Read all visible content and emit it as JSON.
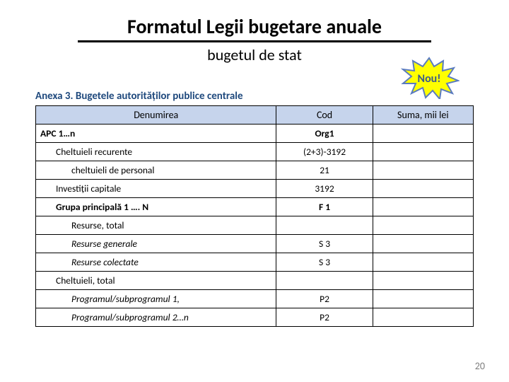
{
  "header": {
    "title": "Formatul Legii bugetare anuale",
    "subtitle": "bugetul de stat"
  },
  "burst": {
    "text": "Nou!",
    "fill": "#ffff00",
    "stroke": "#5a7bbf",
    "textColor": "#3b5a8a"
  },
  "annex": {
    "title": "Anexa 3. Bugetele  autorităților publice  centrale"
  },
  "table": {
    "headers": {
      "col1": "Denumirea",
      "col2": "Cod",
      "col3": "Suma, mii lei"
    },
    "rows": [
      {
        "name": "APC 1…n",
        "cod": "Org1",
        "suma": "",
        "bold": true,
        "indent": 0
      },
      {
        "name": "Cheltuieli recurente",
        "cod": "(2+3)-3192",
        "suma": "",
        "bold": false,
        "indent": 1
      },
      {
        "name": "cheltuieli de personal",
        "cod": "21",
        "suma": "",
        "bold": false,
        "indent": 2
      },
      {
        "name": "Investiții  capitale",
        "cod": "3192",
        "suma": "",
        "bold": false,
        "indent": 1
      },
      {
        "name": "Grupa principală 1 …. N",
        "cod": "F 1",
        "suma": "",
        "bold": true,
        "indent": 1
      },
      {
        "name": "Resurse, total",
        "cod": "",
        "suma": "",
        "bold": false,
        "indent": 2
      },
      {
        "name": "Resurse generale",
        "cod": "S 3",
        "suma": "",
        "bold": false,
        "italic": true,
        "indent": 2
      },
      {
        "name": "Resurse colectate",
        "cod": "S 3",
        "suma": "",
        "bold": false,
        "italic": true,
        "indent": 2
      },
      {
        "name": "Cheltuieli, total",
        "cod": "",
        "suma": "",
        "bold": false,
        "indent": 1
      },
      {
        "name": "Programul/subprogramul 1,",
        "cod": "P2",
        "suma": "",
        "bold": false,
        "italic": true,
        "indent": 2
      },
      {
        "name": "Programul/subprogramul 2…n",
        "cod": "P2",
        "suma": "",
        "bold": false,
        "italic": true,
        "indent": 2
      }
    ]
  },
  "pageNumber": "20"
}
